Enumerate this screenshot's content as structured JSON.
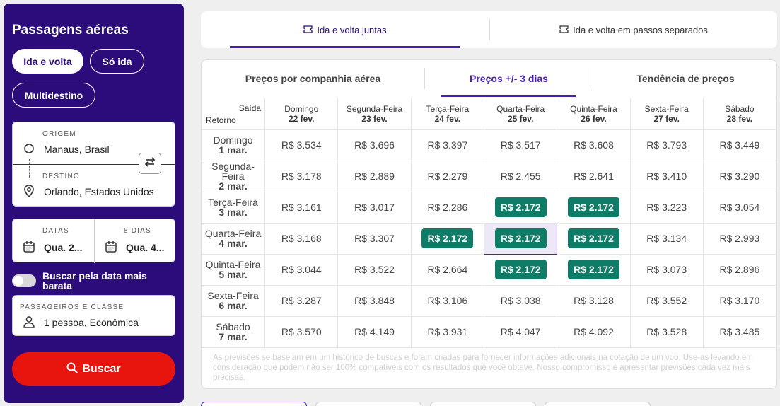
{
  "sidebar": {
    "title": "Passagens aéreas",
    "trip_types": [
      "Ida e volta",
      "Só ida",
      "Multidestino"
    ],
    "origin": {
      "label": "ORIGEM",
      "value": "Manaus, Brasil"
    },
    "destination": {
      "label": "DESTINO",
      "value": "Orlando, Estados Unidos"
    },
    "dates": {
      "label": "DATAS",
      "value": "Qua. 2...",
      "nights_label": "8 DIAS",
      "return_value": "Qua. 4..."
    },
    "cheapest_toggle": "Buscar pela data mais barata",
    "passengers": {
      "label": "PASSAGEIROS E CLASSE",
      "value": "1 pessoa, Econômica"
    },
    "search_label": "Buscar"
  },
  "top_tabs": [
    "Ida e volta juntas",
    "Ida e volta em passos separados"
  ],
  "sub_tabs": [
    "Preços por companhia aérea",
    "Preços +/- 3 dias",
    "Tendência de preços"
  ],
  "grid": {
    "corner_saida": "Saída",
    "corner_retorno": "Retorno",
    "columns": [
      {
        "day": "Domingo",
        "date": "22 fev."
      },
      {
        "day": "Segunda-Feira",
        "date": "23 fev."
      },
      {
        "day": "Terça-Feira",
        "date": "24 fev."
      },
      {
        "day": "Quarta-Feira",
        "date": "25 fev."
      },
      {
        "day": "Quinta-Feira",
        "date": "26 fev."
      },
      {
        "day": "Sexta-Feira",
        "date": "27 fev."
      },
      {
        "day": "Sábado",
        "date": "28 fev."
      }
    ],
    "rows": [
      {
        "day": "Domingo",
        "date": "1 mar.",
        "prices": [
          "R$ 3.534",
          "R$ 3.696",
          "R$ 3.397",
          "R$ 3.517",
          "R$ 3.608",
          "R$ 3.793",
          "R$ 3.449"
        ]
      },
      {
        "day": "Segunda-Feira",
        "date": "2 mar.",
        "prices": [
          "R$ 3.178",
          "R$ 2.889",
          "R$ 2.279",
          "R$ 2.455",
          "R$ 2.641",
          "R$ 3.410",
          "R$ 3.290"
        ]
      },
      {
        "day": "Terça-Feira",
        "date": "3 mar.",
        "prices": [
          "R$ 3.161",
          "R$ 3.017",
          "R$ 2.286",
          "R$ 2.172",
          "R$ 2.172",
          "R$ 3.223",
          "R$ 3.054"
        ]
      },
      {
        "day": "Quarta-Feira",
        "date": "4 mar.",
        "prices": [
          "R$ 3.168",
          "R$ 3.307",
          "R$ 2.172",
          "R$ 2.172",
          "R$ 2.172",
          "R$ 3.134",
          "R$ 2.993"
        ]
      },
      {
        "day": "Quinta-Feira",
        "date": "5 mar.",
        "prices": [
          "R$ 3.044",
          "R$ 3.522",
          "R$ 2.664",
          "R$ 2.172",
          "R$ 2.172",
          "R$ 3.073",
          "R$ 2.896"
        ]
      },
      {
        "day": "Sexta-Feira",
        "date": "6 mar.",
        "prices": [
          "R$ 3.287",
          "R$ 3.848",
          "R$ 3.106",
          "R$ 3.038",
          "R$ 3.128",
          "R$ 3.552",
          "R$ 3.170"
        ]
      },
      {
        "day": "Sábado",
        "date": "7 mar.",
        "prices": [
          "R$ 3.570",
          "R$ 4.149",
          "R$ 3.931",
          "R$ 4.047",
          "R$ 4.092",
          "R$ 3.528",
          "R$ 3.485"
        ]
      }
    ],
    "cheapest_price": "R$ 2.172",
    "selected": {
      "row": 3,
      "col": 3
    }
  },
  "disclaimer": "As previsões se baseiam em um histórico de buscas e foram criadas para fornecer informações adicionais na cotação de um voo. Use-as levando em consideração que podem não ser 100% compatíveis com os resultados que você obteve. Nosso compromisso é apresentar previsões cada vez mais precisas.",
  "colors": {
    "brand": "#2b0c7a",
    "accent": "#4a1fb8",
    "cheap": "#0e7c66",
    "search": "#e8150e"
  },
  "icons": [
    "ticket-icon",
    "circle-origin-icon",
    "location-pin-icon",
    "swap-icon",
    "calendar-icon",
    "person-icon",
    "search-icon"
  ]
}
